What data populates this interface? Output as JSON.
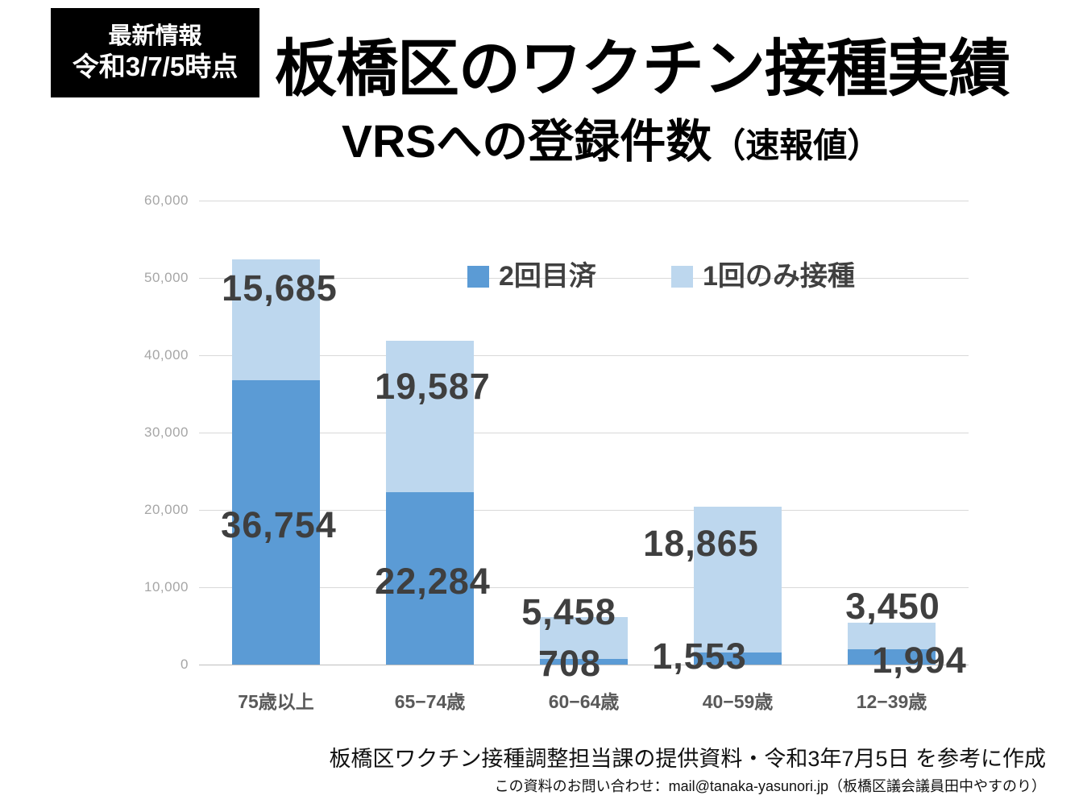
{
  "badge": {
    "line1": "最新情報",
    "line2": "令和3/7/5時点"
  },
  "title": "板橋区のワクチン接種実績",
  "subtitle": {
    "main": "VRSへの登録件数",
    "paren": "（速報値）"
  },
  "chart_data": {
    "type": "bar",
    "stacked": true,
    "title": "VRSへの登録件数（速報値）",
    "categories": [
      "75歳以上",
      "65−74歳",
      "60−64歳",
      "40−59歳",
      "12−39歳"
    ],
    "series": [
      {
        "name": "2回目済",
        "color": "#5B9BD5",
        "values": [
          36754,
          22284,
          708,
          1553,
          1994
        ]
      },
      {
        "name": "1回のみ接種",
        "color": "#BDD7EE",
        "values": [
          15685,
          19587,
          5458,
          18865,
          3450
        ]
      }
    ],
    "ylim": [
      0,
      60000
    ],
    "ytick_step": 10000,
    "ytick_labels": [
      "0",
      "10,000",
      "20,000",
      "30,000",
      "40,000",
      "50,000",
      "60,000"
    ],
    "grid": true,
    "legend_position": "top-center-inside",
    "data_label_color": "#3F3F3F"
  },
  "footer": {
    "line1": "板橋区ワクチン接種調整担当課の提供資料・令和3年7月5日 を参考に作成",
    "line2": "この資料のお問い合わせ：mail@tanaka-yasunori.jp（板橋区議会議員田中やすのり）"
  },
  "colors": {
    "second_dose": "#5B9BD5",
    "first_dose_only": "#BDD7EE",
    "gridline": "#D9D9D9",
    "y_axis_text": "#A6A6A6",
    "x_axis_text": "#595959",
    "legend_text": "#404040",
    "badge_bg": "#000000"
  }
}
